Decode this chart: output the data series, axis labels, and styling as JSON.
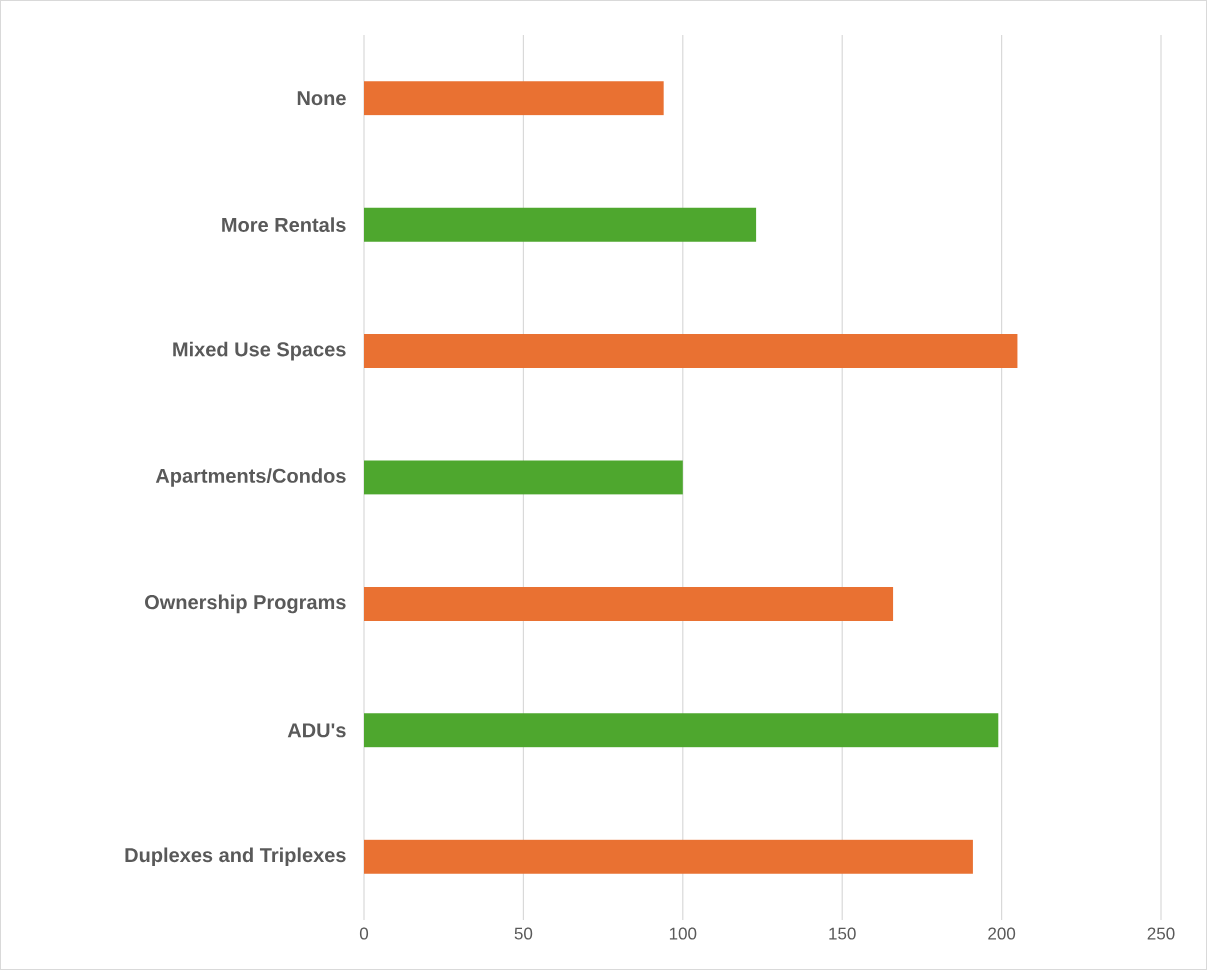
{
  "chart_data": {
    "type": "bar",
    "orientation": "horizontal",
    "categories": [
      "None",
      "More Rentals",
      "Mixed Use Spaces",
      "Apartments/Condos",
      "Ownership Programs",
      "ADU's",
      "Duplexes and Triplexes"
    ],
    "values": [
      94,
      123,
      205,
      100,
      166,
      199,
      191
    ],
    "colors": [
      "#e97132",
      "#4ea72e",
      "#e97132",
      "#4ea72e",
      "#e97132",
      "#4ea72e",
      "#e97132"
    ],
    "xlim": [
      0,
      250
    ],
    "xticks": [
      0,
      50,
      100,
      150,
      200,
      250
    ],
    "grid": "x"
  }
}
